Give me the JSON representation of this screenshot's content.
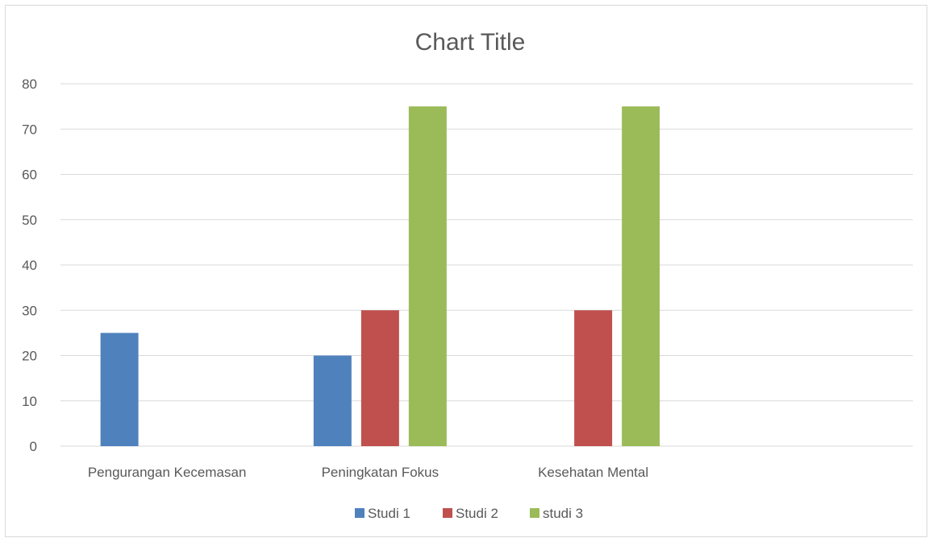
{
  "chart_data": {
    "type": "bar",
    "title": "Chart Title",
    "categories": [
      "Pengurangan Kecemasan",
      "Peningkatan Fokus",
      "Kesehatan Mental",
      ""
    ],
    "series": [
      {
        "name": "Studi 1",
        "color": "#4f81bd",
        "values": [
          25,
          20,
          null,
          null
        ]
      },
      {
        "name": "Studi 2",
        "color": "#c0504d",
        "values": [
          null,
          30,
          30,
          null
        ]
      },
      {
        "name": "studi 3",
        "color": "#9bbb59",
        "values": [
          null,
          75,
          75,
          null
        ]
      }
    ],
    "ylim": [
      0,
      80
    ],
    "yticks": [
      0,
      10,
      20,
      30,
      40,
      50,
      60,
      70,
      80
    ],
    "xlabel": "",
    "ylabel": "",
    "grid": true,
    "legend": "bottom",
    "colors": {
      "grid": "#d9d9d9",
      "text": "#595959"
    }
  }
}
